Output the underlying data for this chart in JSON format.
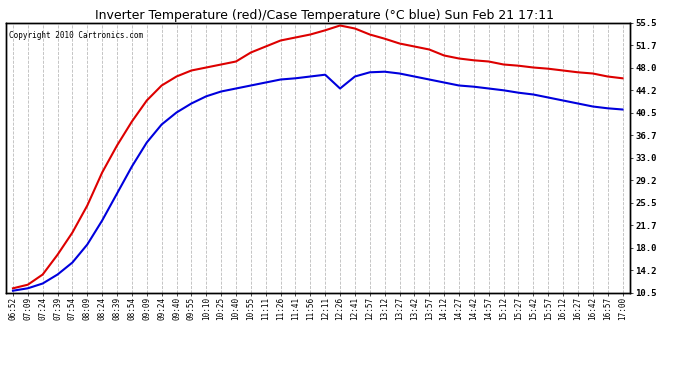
{
  "title": "Inverter Temperature (red)/Case Temperature (°C blue) Sun Feb 21 17:11",
  "copyright": "Copyright 2010 Cartronics.com",
  "ylabel_right_ticks": [
    10.5,
    14.2,
    18.0,
    21.7,
    25.5,
    29.2,
    33.0,
    36.7,
    40.5,
    44.2,
    48.0,
    51.7,
    55.5
  ],
  "ylim": [
    10.5,
    55.5
  ],
  "background_color": "#ffffff",
  "plot_bg_color": "#ffffff",
  "grid_color": "#bbbbbb",
  "red_color": "#dd0000",
  "blue_color": "#0000dd",
  "xtick_labels": [
    "06:52",
    "07:09",
    "07:24",
    "07:39",
    "07:54",
    "08:09",
    "08:24",
    "08:39",
    "08:54",
    "09:09",
    "09:24",
    "09:40",
    "09:55",
    "10:10",
    "10:25",
    "10:40",
    "10:55",
    "11:11",
    "11:26",
    "11:41",
    "11:56",
    "12:11",
    "12:26",
    "12:41",
    "12:57",
    "13:12",
    "13:27",
    "13:42",
    "13:57",
    "14:12",
    "14:27",
    "14:42",
    "14:57",
    "15:12",
    "15:27",
    "15:42",
    "15:57",
    "16:12",
    "16:27",
    "16:42",
    "16:57",
    "17:00"
  ],
  "red_data": [
    11.2,
    11.8,
    13.5,
    16.8,
    20.5,
    25.0,
    30.5,
    35.0,
    39.0,
    42.5,
    45.0,
    46.5,
    47.5,
    48.0,
    48.5,
    49.0,
    50.5,
    51.5,
    52.5,
    53.0,
    53.5,
    54.2,
    55.0,
    54.5,
    53.5,
    52.8,
    52.0,
    51.5,
    51.0,
    50.0,
    49.5,
    49.2,
    49.0,
    48.5,
    48.3,
    48.0,
    47.8,
    47.5,
    47.2,
    47.0,
    46.5,
    46.2
  ],
  "blue_data": [
    10.8,
    11.2,
    12.0,
    13.5,
    15.5,
    18.5,
    22.5,
    27.0,
    31.5,
    35.5,
    38.5,
    40.5,
    42.0,
    43.2,
    44.0,
    44.5,
    45.0,
    45.5,
    46.0,
    46.2,
    46.5,
    46.8,
    44.5,
    46.5,
    47.2,
    47.3,
    47.0,
    46.5,
    46.0,
    45.5,
    45.0,
    44.8,
    44.5,
    44.2,
    43.8,
    43.5,
    43.0,
    42.5,
    42.0,
    41.5,
    41.2,
    41.0
  ],
  "title_fontsize": 9,
  "copyright_fontsize": 5.5,
  "xtick_fontsize": 5.5,
  "ytick_fontsize": 6.5,
  "linewidth": 1.5
}
